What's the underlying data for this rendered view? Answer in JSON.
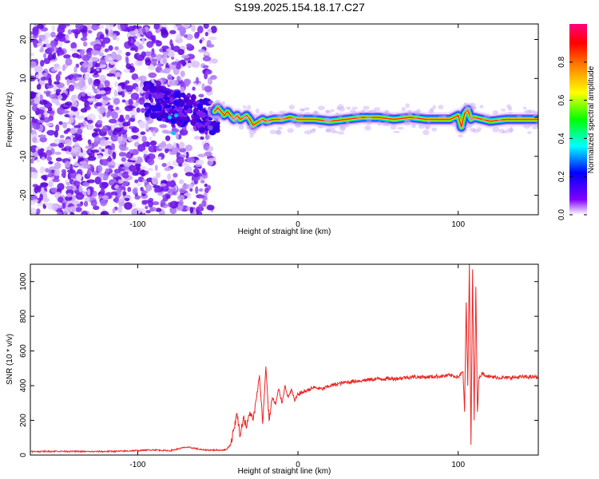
{
  "figure_title": "S199.2025.154.18.17.C27",
  "chart_data": [
    {
      "type": "heatmap",
      "xlabel": "Height of straight line (km)",
      "ylabel": "Frequency (Hz)",
      "xlim": [
        -167,
        150
      ],
      "ylim": [
        -25,
        24
      ],
      "x_ticks": [
        -100,
        0,
        100
      ],
      "x_tick_labels": [
        "-100",
        "0",
        "100"
      ],
      "y_ticks": [
        -20,
        -10,
        0,
        10,
        20
      ],
      "y_tick_labels": [
        "-20",
        "-10",
        "0",
        "10",
        "20"
      ],
      "colorbar": {
        "label": "Normalized spectral amplitude",
        "range": [
          0,
          1
        ],
        "ticks": [
          0.0,
          0.2,
          0.4,
          0.6,
          0.8
        ],
        "tick_labels": [
          "0.0",
          "0.2",
          "0.4",
          "0.6",
          "0.8"
        ],
        "colormap": [
          "#ffffff",
          "#8000ff",
          "#0000ff",
          "#00ffff",
          "#00ff00",
          "#ffff00",
          "#ff8000",
          "#ff0000",
          "#ff0080"
        ]
      },
      "ridge": {
        "x": [
          -52,
          -50,
          -48,
          -46,
          -44,
          -42,
          -40,
          -38,
          -36,
          -34,
          -32,
          -30,
          -28,
          -26,
          -24,
          -22,
          -20,
          -15,
          -10,
          -5,
          0,
          10,
          20,
          30,
          40,
          50,
          60,
          70,
          80,
          90,
          95,
          100,
          102,
          104,
          106,
          108,
          110,
          120,
          130,
          140,
          150
        ],
        "y": [
          1.5,
          2.5,
          1.5,
          0.5,
          1.5,
          0.5,
          -0.5,
          0.5,
          -0.5,
          0.0,
          0.5,
          -0.5,
          -2.0,
          -1.5,
          -1.0,
          -0.5,
          -1.0,
          -0.5,
          -0.5,
          0.0,
          -0.5,
          -0.5,
          -1.0,
          -0.5,
          0.0,
          0.0,
          -0.5,
          0.0,
          -0.5,
          -0.5,
          -0.5,
          0.5,
          -2.5,
          1.0,
          2.0,
          -0.5,
          0.0,
          -1.0,
          -0.5,
          -0.5,
          -0.5
        ]
      }
    },
    {
      "type": "line",
      "xlabel": "Height of straight line (km)",
      "ylabel": "SNR (10 * v/v)",
      "xlim": [
        -167,
        150
      ],
      "ylim": [
        0,
        1100
      ],
      "x_ticks": [
        -100,
        0,
        100
      ],
      "x_tick_labels": [
        "-100",
        "0",
        "100"
      ],
      "y_ticks": [
        0,
        200,
        400,
        600,
        800,
        1000
      ],
      "y_tick_labels": [
        "0",
        "200",
        "400",
        "600",
        "800",
        "1000"
      ],
      "color": "#ee2222",
      "series": [
        {
          "x": [
            -167,
            -150,
            -130,
            -110,
            -90,
            -80,
            -75,
            -70,
            -65,
            -60,
            -50,
            -45,
            -42,
            -40,
            -38,
            -36,
            -34,
            -32,
            -30,
            -28,
            -26,
            -24,
            -22,
            -20,
            -18,
            -16,
            -14,
            -12,
            -10,
            -8,
            -6,
            -4,
            -2,
            0,
            5,
            10,
            15,
            20,
            25,
            30,
            40,
            50,
            60,
            70,
            80,
            90,
            95,
            100,
            103,
            104,
            105,
            106,
            107,
            108,
            109,
            110,
            111,
            112,
            113,
            115,
            120,
            130,
            140,
            150
          ],
          "y": [
            20,
            22,
            20,
            22,
            30,
            25,
            35,
            45,
            40,
            30,
            28,
            30,
            60,
            150,
            240,
            110,
            220,
            160,
            250,
            200,
            320,
            460,
            180,
            510,
            200,
            330,
            290,
            380,
            300,
            400,
            330,
            380,
            310,
            350,
            370,
            390,
            380,
            400,
            410,
            420,
            430,
            440,
            440,
            450,
            450,
            455,
            460,
            450,
            480,
            250,
            880,
            400,
            1100,
            60,
            1070,
            200,
            970,
            250,
            450,
            470,
            450,
            445,
            450,
            450
          ]
        }
      ]
    }
  ]
}
